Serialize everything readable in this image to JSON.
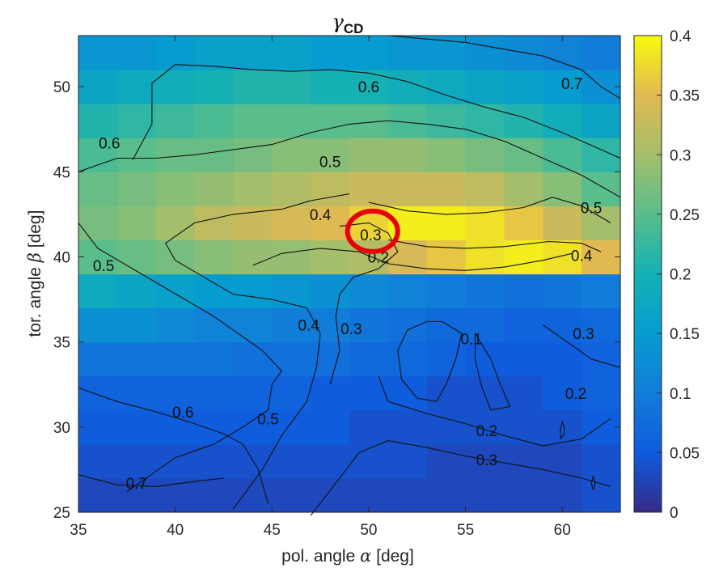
{
  "chart_data": {
    "type": "heatmap",
    "title_symbol": "γ",
    "title_subscript": "CD",
    "xlabel_prefix": "pol. angle ",
    "xlabel_symbol": "α",
    "xlabel_suffix": " [deg]",
    "ylabel_prefix": "tor. angle ",
    "ylabel_symbol": "β",
    "ylabel_suffix": " [deg]",
    "xlim": [
      35,
      63
    ],
    "ylim": [
      25,
      53
    ],
    "x_ticks": [
      35,
      40,
      45,
      50,
      55,
      60
    ],
    "y_ticks": [
      25,
      30,
      35,
      40,
      45,
      50
    ],
    "cell_size": 2,
    "x_centers": [
      36,
      38,
      40,
      42,
      44,
      46,
      48,
      50,
      52,
      54,
      56,
      58,
      60,
      62
    ],
    "y_centers": [
      26,
      28,
      30,
      32,
      34,
      36,
      38,
      40,
      42,
      44,
      46,
      48,
      50,
      52
    ],
    "values": [
      [
        0.03,
        0.03,
        0.03,
        0.03,
        0.03,
        0.03,
        0.03,
        0.03,
        0.03,
        0.03,
        0.03,
        0.03,
        0.03,
        0.04
      ],
      [
        0.04,
        0.04,
        0.04,
        0.04,
        0.04,
        0.04,
        0.04,
        0.04,
        0.04,
        0.03,
        0.03,
        0.03,
        0.03,
        0.04
      ],
      [
        0.05,
        0.05,
        0.05,
        0.05,
        0.05,
        0.05,
        0.05,
        0.04,
        0.04,
        0.04,
        0.04,
        0.04,
        0.04,
        0.05
      ],
      [
        0.06,
        0.06,
        0.06,
        0.06,
        0.06,
        0.06,
        0.05,
        0.05,
        0.05,
        0.04,
        0.04,
        0.04,
        0.05,
        0.06
      ],
      [
        0.09,
        0.09,
        0.09,
        0.09,
        0.08,
        0.08,
        0.08,
        0.07,
        0.07,
        0.06,
        0.05,
        0.05,
        0.05,
        0.06
      ],
      [
        0.13,
        0.13,
        0.12,
        0.11,
        0.11,
        0.1,
        0.1,
        0.09,
        0.08,
        0.07,
        0.07,
        0.06,
        0.06,
        0.07
      ],
      [
        0.18,
        0.17,
        0.16,
        0.15,
        0.15,
        0.14,
        0.13,
        0.12,
        0.11,
        0.1,
        0.09,
        0.08,
        0.09,
        0.1
      ],
      [
        0.25,
        0.26,
        0.27,
        0.28,
        0.29,
        0.29,
        0.3,
        0.31,
        0.34,
        0.36,
        0.38,
        0.39,
        0.38,
        0.35
      ],
      [
        0.27,
        0.28,
        0.3,
        0.32,
        0.33,
        0.34,
        0.35,
        0.37,
        0.39,
        0.39,
        0.38,
        0.36,
        0.33,
        0.3
      ],
      [
        0.26,
        0.27,
        0.28,
        0.29,
        0.3,
        0.31,
        0.32,
        0.33,
        0.33,
        0.33,
        0.32,
        0.3,
        0.28,
        0.25
      ],
      [
        0.24,
        0.25,
        0.26,
        0.26,
        0.27,
        0.28,
        0.28,
        0.29,
        0.29,
        0.28,
        0.27,
        0.26,
        0.24,
        0.22
      ],
      [
        0.21,
        0.22,
        0.23,
        0.24,
        0.25,
        0.25,
        0.25,
        0.25,
        0.24,
        0.23,
        0.22,
        0.21,
        0.19,
        0.17
      ],
      [
        0.17,
        0.18,
        0.19,
        0.2,
        0.21,
        0.21,
        0.2,
        0.2,
        0.19,
        0.18,
        0.17,
        0.16,
        0.15,
        0.13
      ],
      [
        0.14,
        0.14,
        0.15,
        0.16,
        0.16,
        0.16,
        0.15,
        0.15,
        0.14,
        0.14,
        0.13,
        0.12,
        0.11,
        0.1
      ]
    ],
    "colorbar": {
      "min": 0,
      "max": 0.4,
      "ticks": [
        0,
        0.05,
        0.1,
        0.15,
        0.2,
        0.25,
        0.3,
        0.35,
        0.4
      ],
      "tick_labels": [
        "0",
        "0.05",
        "0.1",
        "0.15",
        "0.2",
        "0.25",
        "0.3",
        "0.35",
        "0.4"
      ],
      "colormap": "parula"
    },
    "contour_lines": [
      {
        "level": "0.7",
        "points": [
          [
            35,
            27.2
          ],
          [
            37,
            26.6
          ],
          [
            39,
            26.5
          ],
          [
            41,
            26.8
          ],
          [
            42.5,
            27.0
          ]
        ]
      },
      {
        "level": "0.6",
        "points": [
          [
            35,
            32.3
          ],
          [
            37,
            31.5
          ],
          [
            39,
            30.9
          ],
          [
            41,
            30.2
          ],
          [
            42.5,
            29.6
          ],
          [
            43.5,
            29.0
          ],
          [
            44.3,
            27.5
          ],
          [
            44.8,
            25.5
          ]
        ]
      },
      {
        "level": "0.5",
        "points": [
          [
            37.5,
            26.2
          ],
          [
            40,
            28.2
          ],
          [
            42,
            29.0
          ],
          [
            43.5,
            30.0
          ],
          [
            44.8,
            31.0
          ],
          [
            45,
            32.5
          ],
          [
            45.5,
            33.3
          ],
          [
            44.5,
            34.5
          ],
          [
            42,
            36.5
          ],
          [
            39,
            38.5
          ],
          [
            36,
            40.5
          ],
          [
            35,
            42
          ]
        ]
      },
      {
        "level": "0.4",
        "points": [
          [
            43,
            25.2
          ],
          [
            44.5,
            27.5
          ],
          [
            45.5,
            29.5
          ],
          [
            46.8,
            31.5
          ],
          [
            47.3,
            33.5
          ],
          [
            47.5,
            35.5
          ],
          [
            46.8,
            37.0
          ],
          [
            45,
            37.5
          ],
          [
            43,
            37.8
          ],
          [
            41.5,
            38.8
          ],
          [
            40,
            39.8
          ],
          [
            39.5,
            40.8
          ],
          [
            41,
            42.0
          ],
          [
            43,
            42.5
          ],
          [
            45.5,
            42.8
          ],
          [
            47,
            43.3
          ],
          [
            49,
            43.7
          ]
        ]
      },
      {
        "level": "0.3",
        "points": [
          [
            47,
            24.8
          ],
          [
            48.5,
            27.0
          ],
          [
            49.5,
            28.5
          ],
          [
            51,
            29.2
          ],
          [
            53,
            28.8
          ],
          [
            55,
            28.3
          ],
          [
            57,
            27.9
          ],
          [
            59,
            27.5
          ],
          [
            61,
            27.0
          ],
          [
            62.5,
            26.5
          ]
        ]
      },
      {
        "level": "0.3b",
        "points": [
          [
            48,
            32.5
          ],
          [
            48.5,
            34.5
          ],
          [
            48.3,
            36.5
          ],
          [
            48.5,
            37.8
          ],
          [
            49.2,
            38.8
          ],
          [
            50.5,
            39.3
          ],
          [
            51.5,
            40.3
          ],
          [
            51,
            41.4
          ],
          [
            50,
            42.0
          ],
          [
            48.5,
            41.8
          ]
        ]
      },
      {
        "level": "0.2",
        "points": [
          [
            50.5,
            33.0
          ],
          [
            51,
            31.5
          ],
          [
            53,
            30.8
          ],
          [
            55,
            30.2
          ],
          [
            57,
            29.5
          ],
          [
            59,
            28.9
          ],
          [
            61,
            29.3
          ],
          [
            62.5,
            30.5
          ]
        ]
      },
      {
        "level": "0.2b",
        "points": [
          [
            44,
            39.5
          ],
          [
            45.5,
            40.2
          ],
          [
            47.5,
            40.5
          ],
          [
            49.5,
            40.3
          ],
          [
            51,
            39.6
          ],
          [
            53,
            39.3
          ],
          [
            55,
            39.2
          ],
          [
            57,
            39.4
          ],
          [
            59,
            39.8
          ],
          [
            60.5,
            40.2
          ]
        ]
      },
      {
        "level": "0.1",
        "points": [
          [
            53,
            36.2
          ],
          [
            52,
            35.7
          ],
          [
            51.5,
            34.5
          ],
          [
            51.7,
            32.8
          ],
          [
            52.5,
            31.7
          ],
          [
            53.5,
            31.5
          ],
          [
            54,
            32.5
          ],
          [
            54.5,
            34.0
          ],
          [
            54.8,
            35.5
          ],
          [
            53.8,
            36.2
          ],
          [
            53,
            36.2
          ]
        ]
      },
      {
        "level": "0.1b",
        "points": [
          [
            55.5,
            35.5
          ],
          [
            56.3,
            34.0
          ],
          [
            56.8,
            32.5
          ],
          [
            57.3,
            31.2
          ],
          [
            56.3,
            31.0
          ],
          [
            55.8,
            32.5
          ],
          [
            55.5,
            34.0
          ],
          [
            55.5,
            35.5
          ]
        ]
      },
      {
        "level": "0.3c",
        "points": [
          [
            59,
            36.0
          ],
          [
            60,
            35.2
          ],
          [
            61.5,
            34.0
          ],
          [
            63,
            33.5
          ]
        ]
      },
      {
        "level": "0.4b",
        "points": [
          [
            51,
            41.0
          ],
          [
            53,
            40.6
          ],
          [
            55,
            40.5
          ],
          [
            57,
            40.6
          ],
          [
            59.3,
            40.9
          ],
          [
            61,
            40.8
          ],
          [
            62,
            40.3
          ]
        ]
      },
      {
        "level": "0.5b",
        "points": [
          [
            50,
            43.2
          ],
          [
            52,
            42.7
          ],
          [
            54,
            42.5
          ],
          [
            56,
            42.6
          ],
          [
            58,
            42.9
          ],
          [
            59.5,
            43.5
          ],
          [
            61,
            43.0
          ],
          [
            62.5,
            42.0
          ]
        ]
      },
      {
        "level": "0.5c",
        "points": [
          [
            35,
            45.0
          ],
          [
            37,
            45.8
          ],
          [
            39,
            45.8
          ],
          [
            41,
            46.0
          ],
          [
            43,
            46.3
          ],
          [
            45,
            46.6
          ],
          [
            47,
            47.3
          ],
          [
            49,
            47.8
          ],
          [
            51,
            48.0
          ],
          [
            53,
            47.8
          ],
          [
            55,
            47.5
          ],
          [
            57,
            46.8
          ],
          [
            59,
            45.8
          ],
          [
            61,
            44.8
          ],
          [
            63,
            43.5
          ]
        ]
      },
      {
        "level": "0.6b",
        "points": [
          [
            37.8,
            45.7
          ],
          [
            38.8,
            47.8
          ],
          [
            38.8,
            50.2
          ],
          [
            40,
            51.3
          ],
          [
            42,
            51.2
          ],
          [
            44,
            51.0
          ],
          [
            46,
            50.9
          ],
          [
            48,
            51.0
          ],
          [
            50,
            50.8
          ],
          [
            52,
            50.3
          ],
          [
            54,
            49.5
          ],
          [
            56,
            48.8
          ],
          [
            58,
            48.2
          ],
          [
            60,
            47.3
          ],
          [
            62,
            46.3
          ],
          [
            63,
            45.8
          ]
        ]
      },
      {
        "level": "0.7b",
        "points": [
          [
            51,
            53.0
          ],
          [
            53,
            52.8
          ],
          [
            55,
            52.6
          ],
          [
            57,
            52.2
          ],
          [
            59,
            51.8
          ],
          [
            61,
            51.0
          ],
          [
            62,
            50.0
          ],
          [
            63,
            49.3
          ]
        ]
      },
      {
        "level": "loop1",
        "points": [
          [
            59.9,
            29.3
          ],
          [
            60.1,
            29.6
          ],
          [
            60.1,
            30.0
          ],
          [
            60.0,
            30.3
          ],
          [
            59.9,
            29.8
          ],
          [
            59.9,
            29.3
          ]
        ]
      },
      {
        "level": "loop2",
        "points": [
          [
            61.6,
            26.3
          ],
          [
            61.7,
            26.7
          ],
          [
            61.6,
            27.1
          ],
          [
            61.5,
            26.7
          ],
          [
            61.6,
            26.3
          ]
        ]
      }
    ],
    "contour_labels": [
      {
        "text": "0.7",
        "x": 38,
        "y": 26.7
      },
      {
        "text": "0.6",
        "x": 40.4,
        "y": 30.9
      },
      {
        "text": "0.5",
        "x": 44.8,
        "y": 30.5
      },
      {
        "text": "0.6",
        "x": 36.6,
        "y": 46.7
      },
      {
        "text": "0.5",
        "x": 36.3,
        "y": 39.5
      },
      {
        "text": "0.4",
        "x": 46.9,
        "y": 36.0
      },
      {
        "text": "0.3",
        "x": 49.1,
        "y": 35.8
      },
      {
        "text": "0.1",
        "x": 55.3,
        "y": 35.2
      },
      {
        "text": "0.3",
        "x": 61.1,
        "y": 35.5
      },
      {
        "text": "0.2",
        "x": 60.7,
        "y": 32.0
      },
      {
        "text": "0.2",
        "x": 56.1,
        "y": 29.8
      },
      {
        "text": "0.3",
        "x": 56.1,
        "y": 28.1
      },
      {
        "text": "0.4",
        "x": 47.5,
        "y": 42.5
      },
      {
        "text": "0.3",
        "x": 50.1,
        "y": 41.3
      },
      {
        "text": "0.2",
        "x": 50.5,
        "y": 40.0
      },
      {
        "text": "0.5",
        "x": 48.0,
        "y": 45.6
      },
      {
        "text": "0.4",
        "x": 61.0,
        "y": 40.1
      },
      {
        "text": "0.5",
        "x": 61.5,
        "y": 42.9
      },
      {
        "text": "0.6",
        "x": 50.0,
        "y": 50.0
      },
      {
        "text": "0.7",
        "x": 60.5,
        "y": 50.2
      }
    ],
    "highlight": {
      "label": "red circle annotation",
      "x": 50.2,
      "y": 41.5,
      "color": "#e8000c"
    }
  }
}
